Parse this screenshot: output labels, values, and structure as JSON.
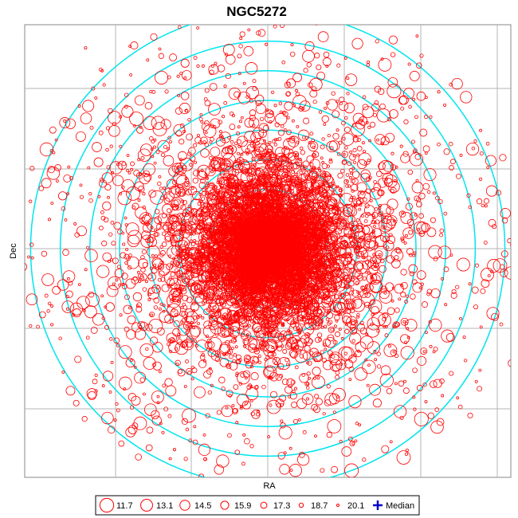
{
  "chart_data": {
    "type": "scatter",
    "title": "NGC5272",
    "xlabel": "RA",
    "ylabel": "Dec",
    "grid": true,
    "colors": {
      "points": "#ff0000",
      "rings": "#00e5ee",
      "grid": "#b4b4b4",
      "median": "#0000cc"
    },
    "legend": {
      "placement": "bottom-center",
      "entries": [
        {
          "label": "11.7",
          "mag": 11.7
        },
        {
          "label": "13.1",
          "mag": 13.1
        },
        {
          "label": "14.5",
          "mag": 14.5
        },
        {
          "label": "15.9",
          "mag": 15.9
        },
        {
          "label": "17.3",
          "mag": 17.3
        },
        {
          "label": "18.7",
          "mag": 18.7
        },
        {
          "label": "20.1",
          "mag": 20.1
        }
      ],
      "median_label": "Median"
    },
    "rings": {
      "count": 8,
      "units": "relative radius",
      "radii": [
        0.12,
        0.24,
        0.36,
        0.48,
        0.6,
        0.72,
        0.84,
        0.96
      ]
    },
    "points_summary": {
      "count": 9000,
      "distribution": "centrally concentrated cluster",
      "mag_range": [
        11.7,
        20.1
      ]
    }
  }
}
